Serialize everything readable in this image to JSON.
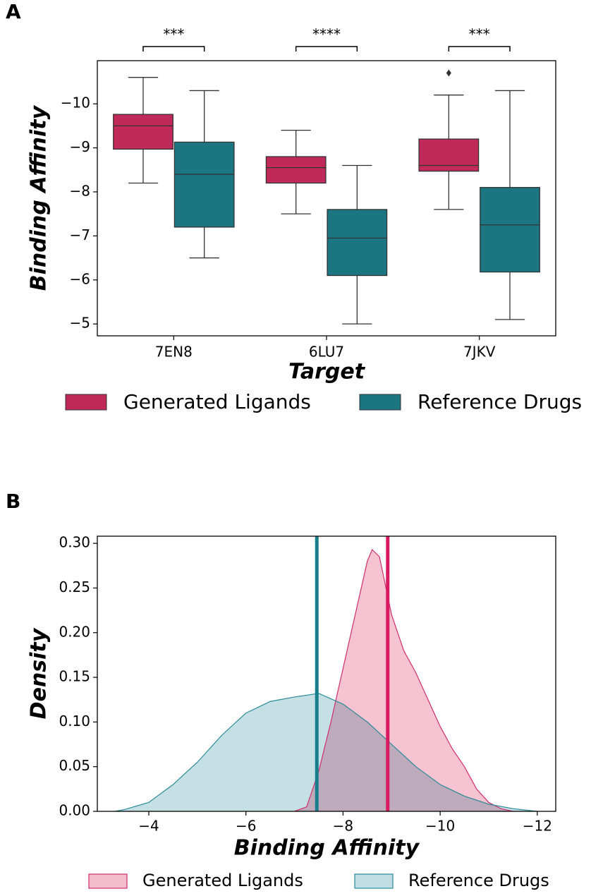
{
  "panel_labels": [
    "A",
    "B"
  ],
  "chart_data": [
    {
      "type": "box",
      "xlabel": "Target",
      "ylabel": "Binding Affinity",
      "categories": [
        "7EN8",
        "6LU7",
        "7JKV"
      ],
      "ylim": [
        -4.73,
        -10.98
      ],
      "yticks": [
        {
          "value": -10,
          "label": "−10"
        },
        {
          "value": -9,
          "label": "−9"
        },
        {
          "value": -8,
          "label": "−8"
        },
        {
          "value": -7,
          "label": "−7"
        },
        {
          "value": -6,
          "label": "−6"
        },
        {
          "value": -5,
          "label": "−5"
        }
      ],
      "series": [
        {
          "name": "Generated Ligands",
          "color": "#c0295a",
          "whisker_low": [
            -8.2,
            -7.5,
            -7.6
          ],
          "q1": [
            -8.97,
            -8.2,
            -8.47
          ],
          "median": [
            -9.5,
            -8.55,
            -8.6
          ],
          "q3": [
            -9.76,
            -8.8,
            -9.2
          ],
          "whisker_high": [
            -10.6,
            -9.4,
            -10.2
          ],
          "outliers": [
            [],
            [],
            [
              -10.7
            ]
          ]
        },
        {
          "name": "Reference Drugs",
          "color": "#1c7682",
          "whisker_low": [
            -6.5,
            -5.0,
            -5.1
          ],
          "q1": [
            -7.2,
            -6.1,
            -6.18
          ],
          "median": [
            -8.4,
            -6.95,
            -7.25
          ],
          "q3": [
            -9.13,
            -7.6,
            -8.1
          ],
          "whisker_high": [
            -10.3,
            -8.6,
            -10.3
          ],
          "outliers": [
            [],
            [],
            []
          ]
        }
      ],
      "significance": [
        "***",
        "****",
        "***"
      ]
    },
    {
      "type": "density",
      "xlabel": "Binding Affinity",
      "ylabel": "Density",
      "xlim": [
        -2.94,
        -12.38
      ],
      "ylim": [
        0,
        0.308
      ],
      "xticks": [
        {
          "value": -4,
          "label": "−4"
        },
        {
          "value": -6,
          "label": "−6"
        },
        {
          "value": -8,
          "label": "−8"
        },
        {
          "value": -10,
          "label": "−10"
        },
        {
          "value": -12,
          "label": "−12"
        }
      ],
      "yticks": [
        {
          "value": 0,
          "label": "0.00"
        },
        {
          "value": 0.05,
          "label": "0.05"
        },
        {
          "value": 0.1,
          "label": "0.10"
        },
        {
          "value": 0.15,
          "label": "0.15"
        },
        {
          "value": 0.2,
          "label": "0.20"
        },
        {
          "value": 0.25,
          "label": "0.25"
        },
        {
          "value": 0.3,
          "label": "0.30"
        }
      ],
      "series": [
        {
          "name": "Generated Ligands",
          "color": "#d0306b",
          "fill": "#f4bccd",
          "mean": -8.92,
          "mean_color": "#d81b60",
          "x": [
            -7.0,
            -7.25,
            -7.5,
            -7.75,
            -8.0,
            -8.25,
            -8.5,
            -8.6,
            -8.75,
            -9.0,
            -9.25,
            -9.5,
            -9.75,
            -10.0,
            -10.25,
            -10.5,
            -10.75,
            -11.0,
            -11.25,
            -11.5
          ],
          "values": [
            0,
            0.005,
            0.045,
            0.1,
            0.16,
            0.22,
            0.28,
            0.293,
            0.285,
            0.22,
            0.18,
            0.155,
            0.125,
            0.095,
            0.07,
            0.05,
            0.025,
            0.01,
            0.003,
            0
          ]
        },
        {
          "name": "Reference Drugs",
          "color": "#2a8a96",
          "fill": "#bfdde2",
          "mean": -7.46,
          "mean_color": "#177e8c",
          "x": [
            -3.3,
            -3.5,
            -4.0,
            -4.5,
            -5.0,
            -5.5,
            -6.0,
            -6.5,
            -7.0,
            -7.5,
            -8.0,
            -8.5,
            -9.0,
            -9.5,
            -10.0,
            -10.5,
            -11.0,
            -11.5,
            -12.0
          ],
          "values": [
            0,
            0.002,
            0.01,
            0.03,
            0.055,
            0.085,
            0.11,
            0.123,
            0.128,
            0.132,
            0.12,
            0.1,
            0.075,
            0.05,
            0.03,
            0.017,
            0.008,
            0.003,
            0
          ]
        }
      ]
    }
  ]
}
